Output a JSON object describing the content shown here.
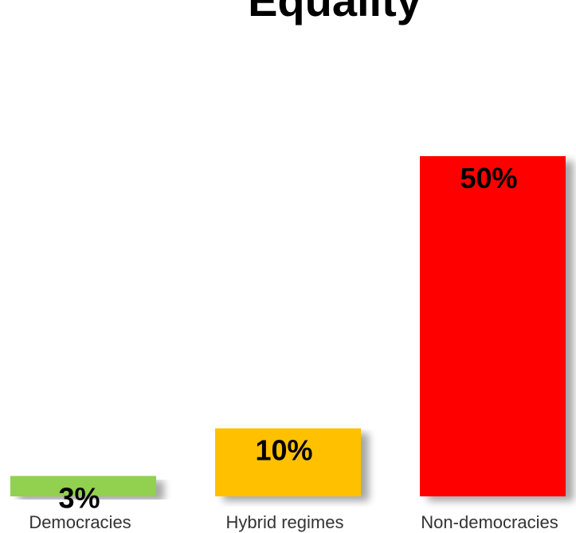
{
  "chart_data": {
    "type": "bar",
    "title": "Equality",
    "categories": [
      "Democracies",
      "Hybrid regimes",
      "Non-democracies"
    ],
    "values": [
      3,
      10,
      50
    ],
    "value_labels": [
      "3%",
      "10%",
      "50%"
    ],
    "colors": [
      "#92D050",
      "#FFC000",
      "#FF0000"
    ],
    "ylim": [
      0,
      50
    ],
    "grid": false,
    "legend": "none"
  }
}
